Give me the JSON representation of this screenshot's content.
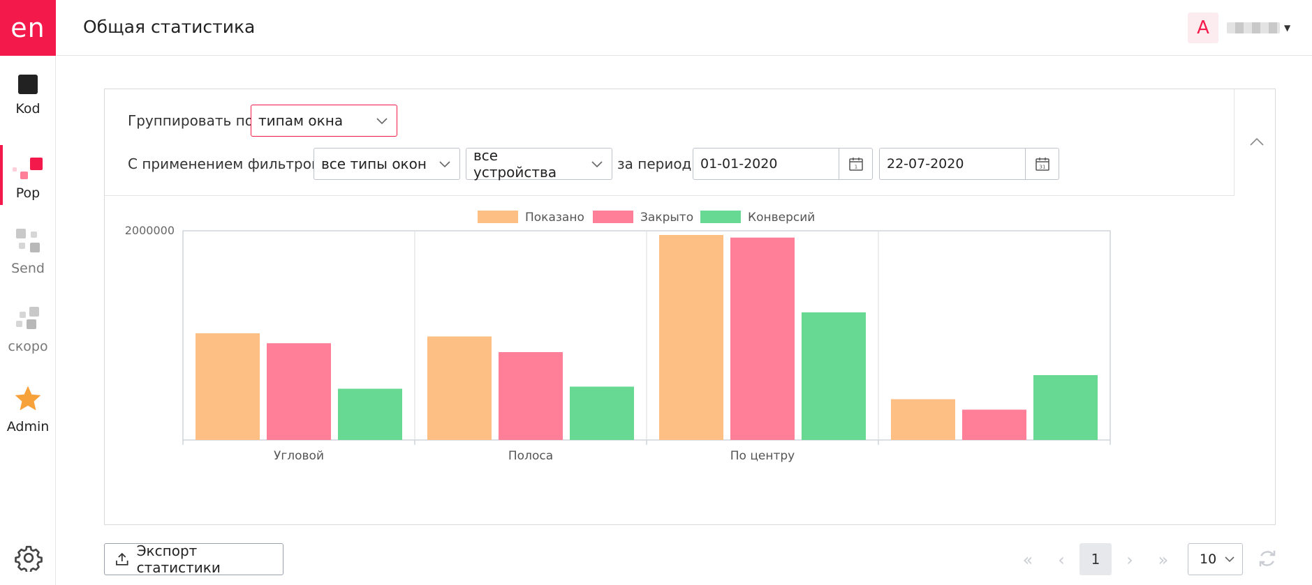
{
  "app": {
    "logo_text": "en",
    "title": "Общая статистика"
  },
  "sidebar": {
    "items": [
      {
        "label": "Kod",
        "icon": "square-icon"
      },
      {
        "label": "Pop",
        "icon": "popup-squares-icon",
        "active": true
      },
      {
        "label": "Send",
        "icon": "grid-squares-icon"
      },
      {
        "label": "скоро",
        "icon": "grid-squares-icon"
      },
      {
        "label": "Admin",
        "icon": "star-icon"
      }
    ],
    "settings_icon": "gear-icon"
  },
  "user": {
    "avatar_letter": "A"
  },
  "filters": {
    "group_label": "Группировать по",
    "group_value": "типам окна",
    "filters_label": "С применением фильтров",
    "window_type_value": "все типы окон",
    "device_value": "все устройства",
    "period_label": "за период",
    "date_from": "01-01-2020",
    "date_to": "22-07-2020"
  },
  "chart_data": {
    "type": "bar",
    "categories": [
      "Угловой",
      "Полоса",
      "По центру",
      ""
    ],
    "series": [
      {
        "name": "Показано",
        "color": "#fdbf83",
        "values": [
          1020000,
          990000,
          1960000,
          390000
        ]
      },
      {
        "name": "Закрыто",
        "color": "#ff7f98",
        "values": [
          925000,
          840000,
          1935000,
          290000
        ]
      },
      {
        "name": "Конверсий",
        "color": "#68d993",
        "values": [
          490000,
          510000,
          1220000,
          620000
        ]
      }
    ],
    "y_tick_label": "2000000",
    "ylim": [
      0,
      2000000
    ],
    "legend_position": "top-center",
    "grid": "vertical"
  },
  "footer": {
    "export_label": "Экспорт статистики",
    "current_page": "1",
    "page_size": "10"
  },
  "colors": {
    "accent": "#f3194a"
  }
}
